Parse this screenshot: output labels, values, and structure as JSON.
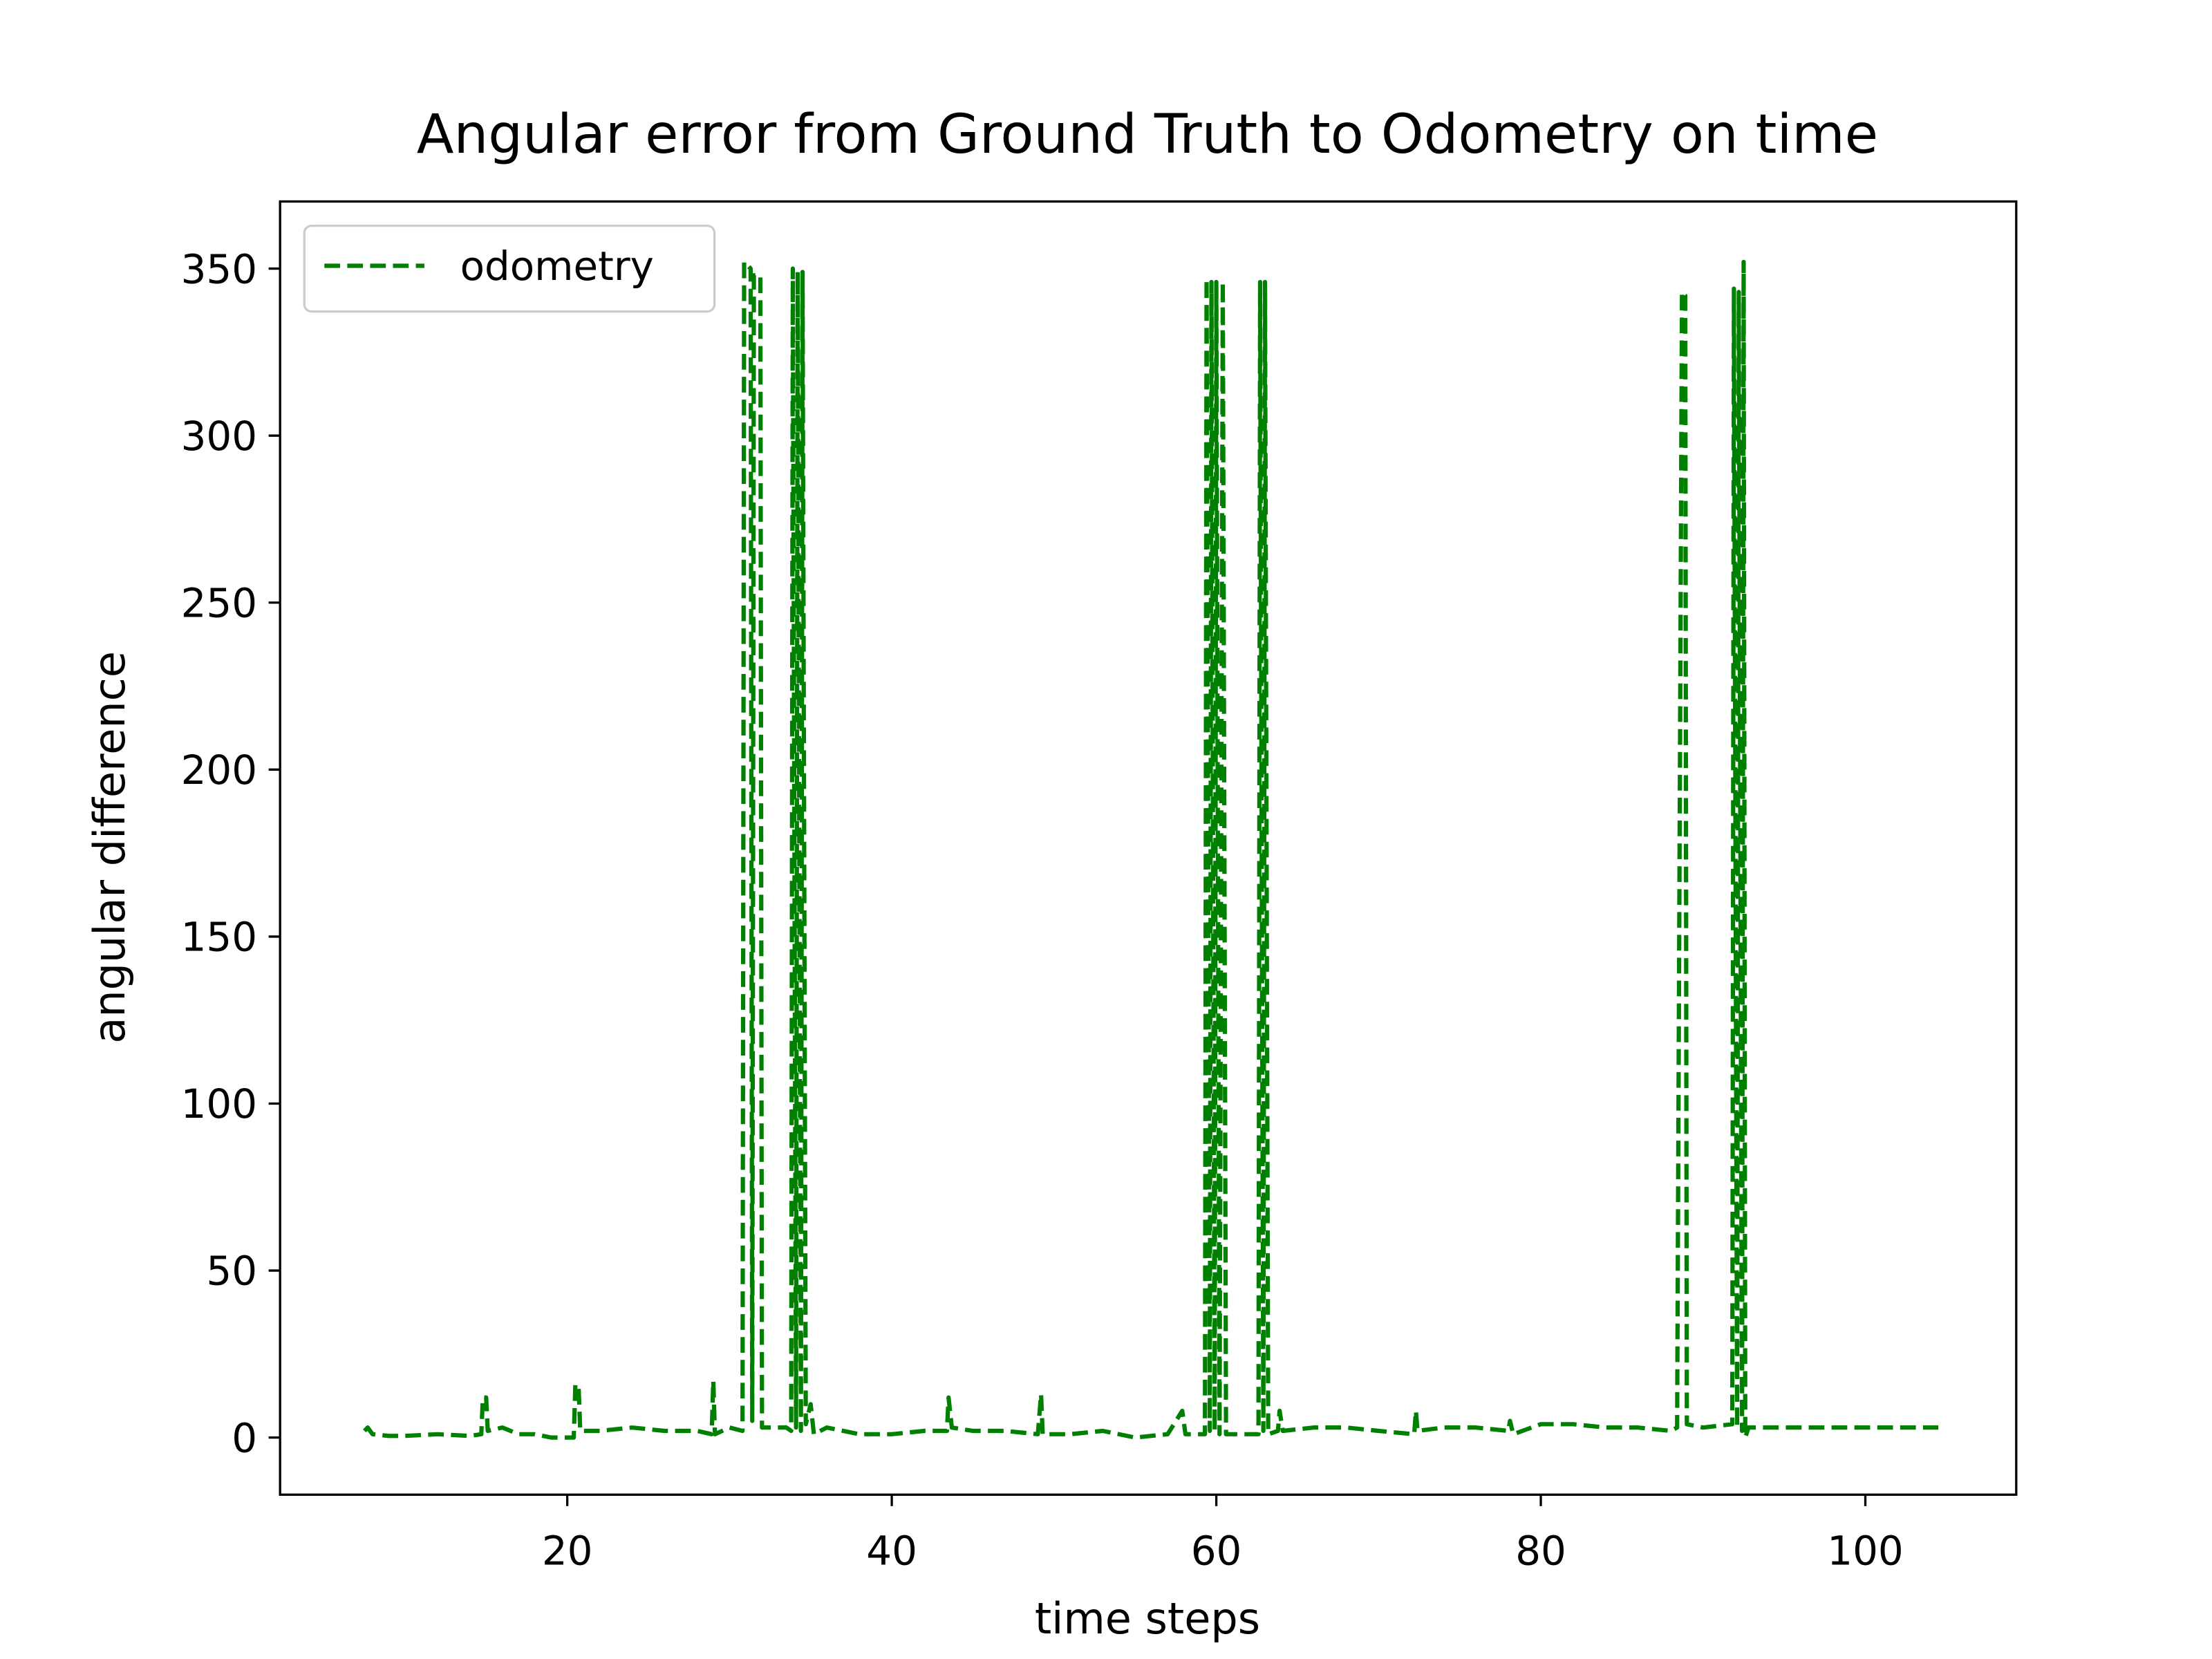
{
  "chart_data": {
    "type": "line",
    "title": "Angular error from Ground Truth to Odometry on time",
    "xlabel": "time steps",
    "ylabel": "angular difference",
    "x": [
      7.5,
      7.7,
      8,
      9,
      10,
      12,
      14,
      14.7,
      14.8,
      15,
      15.1,
      16,
      17,
      18,
      19,
      20.4,
      20.5,
      20.7,
      20.8,
      22,
      24,
      26,
      28,
      28.9,
      29,
      29.1,
      30,
      30.8,
      30.9,
      31.3,
      31.4,
      31.5,
      31.9,
      32,
      33.5,
      33.8,
      33.9,
      34.1,
      34.2,
      34.4,
      34.5,
      34.7,
      35,
      35.2,
      36,
      38,
      40,
      42,
      43.4,
      43.5,
      43.7,
      45,
      47,
      49,
      49.2,
      49.3,
      51,
      53,
      55,
      57,
      57.9,
      58.1,
      59.3,
      59.4,
      59.6,
      59.7,
      59.9,
      60,
      60.2,
      60.4,
      60.6,
      62,
      62.6,
      62.7,
      62.9,
      63,
      63.2,
      63.8,
      63.9,
      64.1,
      66,
      68,
      70,
      72.2,
      72.3,
      72.4,
      74,
      76,
      78,
      78.1,
      78.3,
      80,
      82,
      84,
      86,
      88,
      88.4,
      88.7,
      88.9,
      89,
      90,
      91.8,
      91.9,
      92.1,
      92.2,
      92.4,
      92.5,
      92.6,
      92.8,
      104.5
    ],
    "series": [
      {
        "name": "odometry",
        "color": "#008000",
        "dashed": true,
        "values": [
          2,
          3,
          1,
          0.5,
          0.5,
          1,
          0.5,
          1,
          12,
          12,
          2,
          3,
          1,
          1,
          0,
          0,
          16,
          15,
          2,
          2,
          3,
          2,
          2,
          1,
          17,
          1,
          3,
          2,
          352,
          350,
          5,
          348,
          348,
          3,
          3,
          2,
          350,
          3,
          349,
          2,
          349,
          4,
          10,
          1,
          3,
          1,
          1,
          2,
          2,
          12,
          3,
          2,
          2,
          1,
          13,
          1,
          1,
          2,
          0,
          1,
          8,
          1,
          1,
          347,
          2,
          346,
          2,
          346,
          1,
          346,
          1,
          1,
          1,
          346,
          2,
          346,
          1,
          2,
          8,
          2,
          3,
          3,
          2,
          1,
          8,
          2,
          3,
          3,
          2,
          5,
          1,
          4,
          4,
          3,
          3,
          2,
          3,
          343,
          342,
          4,
          3,
          4,
          344,
          3,
          343,
          2,
          352,
          0,
          3,
          3
        ]
      }
    ],
    "xlim": [
      2.3,
      109.3
    ],
    "ylim": [
      -17.1,
      370.1
    ],
    "xticks": [
      20,
      40,
      60,
      80,
      100
    ],
    "yticks": [
      0,
      50,
      100,
      150,
      200,
      250,
      300,
      350
    ],
    "legend": "upper left"
  }
}
